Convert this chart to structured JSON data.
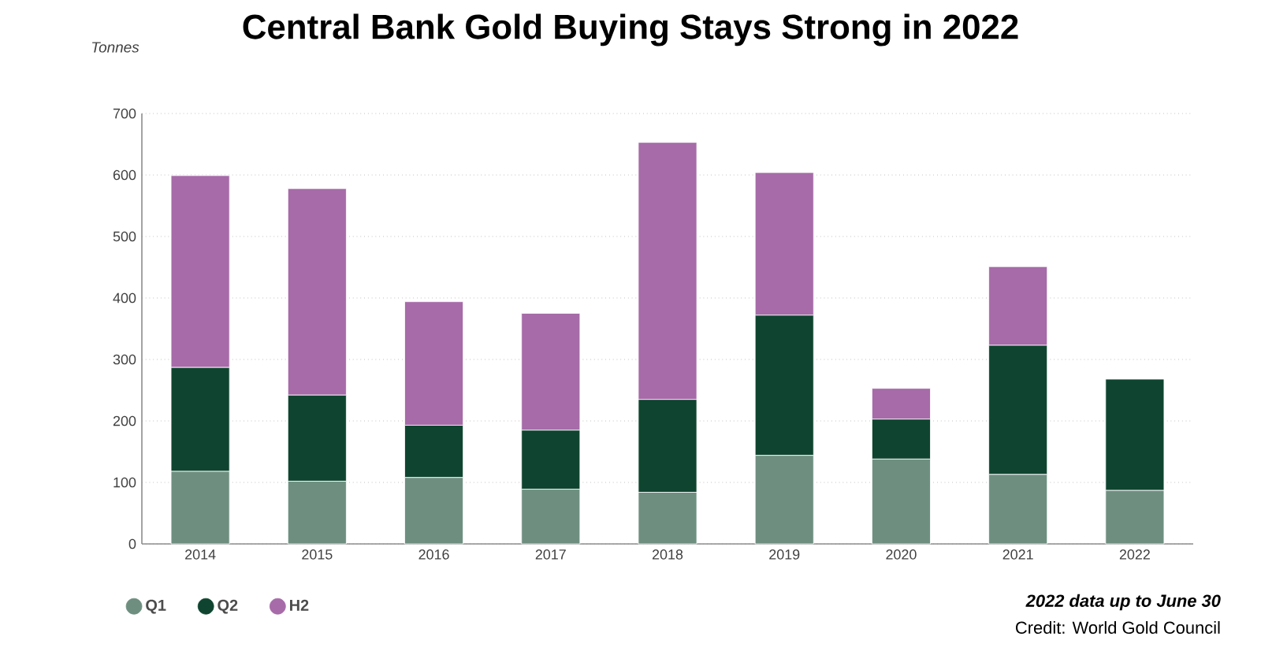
{
  "chart_data": {
    "type": "bar",
    "stacked": true,
    "title": "Central Bank Gold Buying Stays Strong in 2022",
    "ylabel": "Tonnes",
    "categories": [
      "2014",
      "2015",
      "2016",
      "2017",
      "2018",
      "2019",
      "2020",
      "2021",
      "2022"
    ],
    "series": [
      {
        "name": "Q1",
        "color": "#6e8f80",
        "values": [
          118,
          102,
          108,
          89,
          84,
          144,
          138,
          113,
          87
        ]
      },
      {
        "name": "Q2",
        "color": "#0f4530",
        "values": [
          169,
          140,
          85,
          96,
          151,
          228,
          65,
          210,
          181
        ]
      },
      {
        "name": "H2",
        "color": "#a66ba8",
        "values": [
          312,
          336,
          201,
          190,
          418,
          232,
          50,
          128,
          null
        ]
      }
    ],
    "ylim": [
      0,
      700
    ],
    "yticks": [
      0,
      100,
      200,
      300,
      400,
      500,
      600,
      700
    ],
    "grid": "y",
    "legend": "bottom left",
    "annotations": [
      "2022 data up to June 30",
      "Credit: World Gold Council"
    ]
  }
}
